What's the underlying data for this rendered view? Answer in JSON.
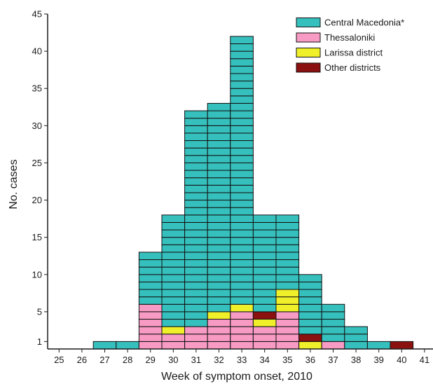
{
  "chart_data": {
    "type": "bar",
    "stacked": true,
    "unit_stacked_cells": true,
    "xlabel": "Week of symptom onset, 2010",
    "ylabel": "No. cases",
    "x": [
      25,
      26,
      27,
      28,
      29,
      30,
      31,
      32,
      33,
      34,
      35,
      36,
      37,
      38,
      39,
      40,
      41
    ],
    "x_tick_labels": [
      "25",
      "26",
      "27",
      "28",
      "29",
      "30",
      "31",
      "32",
      "33",
      "34",
      "35",
      "36",
      "37",
      "38",
      "39",
      "40",
      "41"
    ],
    "y_ticks": [
      1,
      5,
      10,
      15,
      20,
      25,
      30,
      35,
      40,
      45
    ],
    "y_tick_labels": [
      "1",
      "5",
      "10",
      "15",
      "20",
      "25",
      "30",
      "35",
      "40",
      "45"
    ],
    "ylim": [
      0,
      45
    ],
    "grid": false,
    "legend_position": "top-right",
    "series": [
      {
        "name": "Thessaloniki",
        "color": "#f79ac4",
        "values": [
          0,
          0,
          0,
          0,
          6,
          2,
          3,
          4,
          5,
          3,
          5,
          0,
          1,
          0,
          0,
          0,
          0
        ]
      },
      {
        "name": "Larissa district",
        "color": "#f0f02a",
        "values": [
          0,
          0,
          0,
          0,
          0,
          1,
          0,
          1,
          1,
          1,
          3,
          1,
          0,
          0,
          0,
          0,
          0
        ]
      },
      {
        "name": "Other districts",
        "color": "#8b1010",
        "values": [
          0,
          0,
          0,
          0,
          0,
          0,
          0,
          0,
          0,
          1,
          0,
          1,
          0,
          0,
          0,
          1,
          0
        ]
      },
      {
        "name": "Central Macedonia*",
        "color": "#36c0bd",
        "values": [
          0,
          0,
          1,
          1,
          7,
          15,
          29,
          28,
          36,
          13,
          10,
          8,
          5,
          3,
          1,
          0,
          0
        ]
      }
    ],
    "legend_order": [
      "Central Macedonia*",
      "Thessaloniki",
      "Larissa district",
      "Other districts"
    ]
  }
}
